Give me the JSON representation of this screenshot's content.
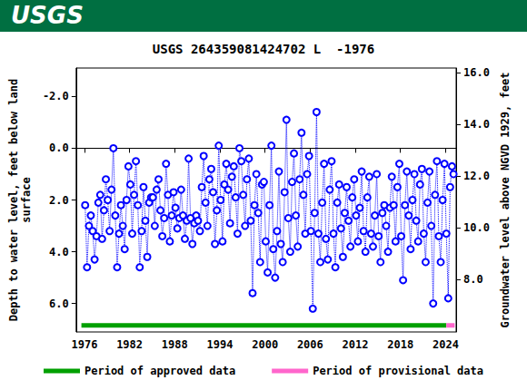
{
  "header": {
    "logo": "USGS"
  },
  "chart_data": {
    "type": "line",
    "title": "USGS 264359081424702 L  -1976",
    "y_label": "Depth to water level, feet below land\nsurface",
    "y2_label": "Groundwater level above NGVD 1929, feet",
    "xlim": [
      1974.9,
      2025.4
    ],
    "xticks": [
      1976,
      1982,
      1988,
      1994,
      2000,
      2006,
      2012,
      2018,
      2024
    ],
    "ylim": [
      7.1,
      -3.1
    ],
    "yticks": [
      {
        "value": -2,
        "label": "-2.0"
      },
      {
        "value": 0,
        "label": "0.0"
      },
      {
        "value": 2,
        "label": "2.0"
      },
      {
        "value": 4,
        "label": "4.0"
      },
      {
        "value": 6,
        "label": "6.0"
      }
    ],
    "y2lim": [
      5.97,
      16.17
    ],
    "y2ticks": [
      {
        "value": 8,
        "label": "8.0"
      },
      {
        "value": 10,
        "label": "10.0"
      },
      {
        "value": 12,
        "label": "12.0"
      },
      {
        "value": 14,
        "label": "14.0"
      },
      {
        "value": 16,
        "label": "16.0"
      }
    ],
    "grid": false,
    "legend": "bottom",
    "series": [
      {
        "color": "#0000ff",
        "marker": "circle",
        "line_style": "dotted",
        "x": [
          1976.1,
          1976.35,
          1976.6,
          1976.85,
          1977.1,
          1977.35,
          1977.6,
          1977.85,
          1978.1,
          1978.35,
          1978.6,
          1978.85,
          1979.1,
          1979.35,
          1979.6,
          1979.85,
          1980.1,
          1980.35,
          1980.6,
          1980.85,
          1981.1,
          1981.35,
          1981.6,
          1981.85,
          1982.1,
          1982.35,
          1982.6,
          1982.85,
          1983.1,
          1983.35,
          1983.6,
          1983.85,
          1984.1,
          1984.35,
          1984.6,
          1984.85,
          1985.1,
          1985.35,
          1985.6,
          1985.85,
          1986.1,
          1986.35,
          1986.6,
          1986.85,
          1987.1,
          1987.35,
          1987.6,
          1987.85,
          1988.1,
          1988.35,
          1988.6,
          1988.85,
          1989.1,
          1989.35,
          1989.6,
          1989.85,
          1990.1,
          1990.35,
          1990.6,
          1990.85,
          1991.1,
          1991.35,
          1991.6,
          1991.85,
          1992.1,
          1992.35,
          1992.6,
          1992.85,
          1993.1,
          1993.35,
          1993.6,
          1993.85,
          1994.1,
          1994.35,
          1994.6,
          1994.85,
          1995.1,
          1995.35,
          1995.6,
          1995.85,
          1996.1,
          1996.35,
          1996.6,
          1996.85,
          1997.1,
          1997.35,
          1997.6,
          1997.85,
          1998.1,
          1998.35,
          1998.6,
          1998.85,
          1999.1,
          1999.35,
          1999.6,
          1999.85,
          2000.1,
          2000.35,
          2000.6,
          2000.85,
          2001.1,
          2001.35,
          2001.6,
          2001.85,
          2002.1,
          2002.35,
          2002.6,
          2002.85,
          2003.1,
          2003.35,
          2003.6,
          2003.85,
          2004.1,
          2004.35,
          2004.6,
          2004.85,
          2005.1,
          2005.35,
          2005.6,
          2005.85,
          2006.1,
          2006.35,
          2006.6,
          2006.85,
          2007.1,
          2007.35,
          2007.6,
          2007.85,
          2008.1,
          2008.35,
          2008.6,
          2008.85,
          2009.1,
          2009.35,
          2009.6,
          2009.85,
          2010.1,
          2010.35,
          2010.6,
          2010.85,
          2011.1,
          2011.35,
          2011.6,
          2011.85,
          2012.1,
          2012.35,
          2012.6,
          2012.85,
          2013.1,
          2013.35,
          2013.6,
          2013.85,
          2014.1,
          2014.35,
          2014.6,
          2014.85,
          2015.1,
          2015.35,
          2015.6,
          2015.85,
          2016.1,
          2016.35,
          2016.6,
          2016.85,
          2017.1,
          2017.35,
          2017.6,
          2017.85,
          2018.1,
          2018.35,
          2018.6,
          2018.85,
          2019.1,
          2019.35,
          2019.6,
          2019.85,
          2020.1,
          2020.35,
          2020.6,
          2020.85,
          2021.1,
          2021.35,
          2021.6,
          2021.85,
          2022.1,
          2022.35,
          2022.6,
          2022.85,
          2023.1,
          2023.35,
          2023.6,
          2023.85,
          2024.1,
          2024.35,
          2024.6,
          2024.85,
          2025.05
        ],
        "values": [
          2.2,
          4.6,
          3.0,
          2.6,
          3.2,
          4.3,
          3.4,
          2.1,
          1.8,
          3.5,
          2.4,
          1.2,
          2.0,
          3.2,
          1.6,
          0.0,
          2.6,
          4.6,
          3.3,
          2.2,
          3.0,
          3.9,
          2.0,
          0.7,
          1.4,
          3.3,
          1.8,
          0.5,
          2.2,
          4.6,
          3.2,
          1.5,
          2.8,
          4.2,
          2.1,
          1.9,
          1.9,
          3.0,
          1.6,
          1.2,
          2.4,
          3.4,
          2.7,
          0.6,
          1.8,
          3.6,
          2.6,
          1.7,
          2.3,
          3.1,
          2.7,
          1.6,
          2.6,
          3.5,
          2.8,
          0.4,
          2.7,
          3.7,
          2.9,
          2.6,
          2.8,
          3.2,
          1.5,
          0.3,
          2.1,
          3.0,
          1.2,
          0.8,
          1.7,
          3.7,
          2.4,
          -0.1,
          2.0,
          3.6,
          1.4,
          0.6,
          1.6,
          2.9,
          1.1,
          0.7,
          1.9,
          3.3,
          0.0,
          0.5,
          1.8,
          3.0,
          1.2,
          0.4,
          2.8,
          5.6,
          2.2,
          1.0,
          2.5,
          4.4,
          1.4,
          1.3,
          3.6,
          4.8,
          2.2,
          -0.1,
          3.9,
          5.0,
          3.2,
          0.9,
          3.7,
          4.4,
          1.7,
          -1.1,
          2.7,
          4.0,
          1.3,
          0.2,
          2.6,
          3.8,
          1.2,
          -0.6,
          1.8,
          3.3,
          1.0,
          0.3,
          3.2,
          6.2,
          2.5,
          -1.4,
          3.3,
          4.4,
          2.1,
          0.6,
          3.5,
          4.3,
          1.6,
          0.5,
          3.3,
          4.6,
          2.1,
          1.4,
          3.1,
          4.2,
          2.5,
          1.5,
          2.8,
          3.8,
          1.9,
          1.2,
          2.6,
          3.6,
          2.3,
          0.9,
          3.2,
          4.0,
          1.9,
          1.1,
          3.3,
          3.8,
          2.6,
          1.0,
          3.4,
          4.4,
          2.5,
          2.2,
          3.0,
          4.0,
          2.3,
          1.1,
          2.2,
          3.6,
          1.5,
          0.6,
          3.4,
          5.1,
          2.2,
          0.9,
          2.6,
          3.9,
          2.0,
          1.0,
          2.8,
          3.6,
          1.4,
          0.8,
          3.3,
          4.4,
          2.1,
          0.9,
          3.0,
          6.0,
          1.8,
          0.5,
          3.4,
          4.4,
          2.0,
          0.6,
          3.3,
          5.8,
          1.5,
          0.7,
          1.0
        ]
      },
      {
        "name": "Period of approved data",
        "color": "#00a000",
        "marker": "none",
        "line_style": "solid",
        "x": [
          1975.6,
          2024.1
        ],
        "values": [
          6.85,
          6.85
        ]
      },
      {
        "name": "Period of provisional data",
        "color": "#ff66cc",
        "marker": "none",
        "line_style": "solid",
        "x": [
          2024.1,
          2025.2
        ],
        "values": [
          6.85,
          6.85
        ]
      }
    ]
  }
}
